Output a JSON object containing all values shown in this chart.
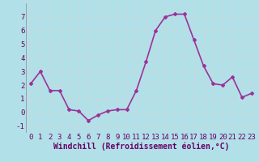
{
  "x": [
    0,
    1,
    2,
    3,
    4,
    5,
    6,
    7,
    8,
    9,
    10,
    11,
    12,
    13,
    14,
    15,
    16,
    17,
    18,
    19,
    20,
    21,
    22,
    23
  ],
  "y": [
    2.1,
    3.0,
    1.6,
    1.6,
    0.2,
    0.1,
    -0.6,
    -0.2,
    0.1,
    0.2,
    0.2,
    1.6,
    3.7,
    6.0,
    7.0,
    7.2,
    7.2,
    5.3,
    3.4,
    2.1,
    2.0,
    2.6,
    1.1,
    1.4
  ],
  "line_color": "#993399",
  "marker": "D",
  "marker_size": 2,
  "bg_color": "#b2e0e8",
  "grid_color": "#c8d8dc",
  "xlabel": "Windchill (Refroidissement éolien,°C)",
  "xlabel_fontsize": 7,
  "xlim": [
    -0.5,
    23.5
  ],
  "ylim": [
    -1.5,
    8.0
  ],
  "yticks": [
    -1,
    0,
    1,
    2,
    3,
    4,
    5,
    6,
    7
  ],
  "xticks": [
    0,
    1,
    2,
    3,
    4,
    5,
    6,
    7,
    8,
    9,
    10,
    11,
    12,
    13,
    14,
    15,
    16,
    17,
    18,
    19,
    20,
    21,
    22,
    23
  ],
  "tick_fontsize": 6.5,
  "line_width": 1.2
}
